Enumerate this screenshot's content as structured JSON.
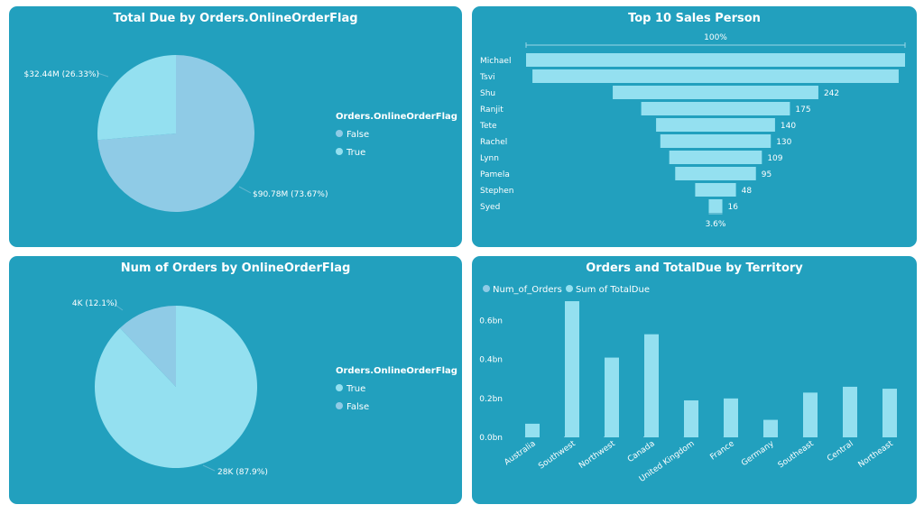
{
  "chart_data": [
    {
      "type": "pie",
      "title": "Total Due by Orders.OnlineOrderFlag",
      "legend_title": "Orders.OnlineOrderFlag",
      "legend_position": "right",
      "slices": [
        {
          "name": "False",
          "value": 90.78,
          "label": "$90.78M (73.67%)",
          "color": "#8fcbe6"
        },
        {
          "name": "True",
          "value": 32.44,
          "label": "$32.44M (26.33%)",
          "color": "#94e0f0"
        }
      ]
    },
    {
      "type": "bar",
      "orientation": "funnel",
      "title": "Top 10 Sales Person",
      "top_label": "100%",
      "bottom_label": "3.6%",
      "categories": [
        "Michael",
        "Tsvi",
        "Shu",
        "Ranjit",
        "Tete",
        "Rachel",
        "Lynn",
        "Pamela",
        "Stephen",
        "Syed"
      ],
      "values": [
        446,
        431,
        242,
        175,
        140,
        130,
        109,
        95,
        48,
        16
      ],
      "value_labels": [
        "",
        "",
        "242",
        "175",
        "140",
        "130",
        "109",
        "95",
        "48",
        "16"
      ],
      "color": "#94e0f0"
    },
    {
      "type": "pie",
      "title": "Num of Orders by OnlineOrderFlag",
      "legend_title": "Orders.OnlineOrderFlag",
      "legend_position": "right",
      "slices": [
        {
          "name": "True",
          "value": 87.9,
          "label": "28K (87.9%)",
          "color": "#94e0f0"
        },
        {
          "name": "False",
          "value": 12.1,
          "label": "4K (12.1%)",
          "color": "#8fcbe6"
        }
      ]
    },
    {
      "type": "bar",
      "title": "Orders and TotalDue by Territory",
      "legend_position": "top-left",
      "legend": [
        "Num_of_Orders",
        "Sum of TotalDue"
      ],
      "legend_colors": [
        "#8fcbe6",
        "#94e0f0"
      ],
      "categories": [
        "Australia",
        "Southwest",
        "Northwest",
        "Canada",
        "United Kingdom",
        "France",
        "Germany",
        "Southeast",
        "Central",
        "Northeast"
      ],
      "series": [
        {
          "name": "Num_of_Orders",
          "values": [
            0.0007,
            0.0042,
            0.0036,
            0.0048,
            0.001,
            0.001,
            0.0007,
            0.0005,
            0.0004,
            0.0004
          ]
        },
        {
          "name": "Sum of TotalDue",
          "values": [
            0.07,
            0.7,
            0.41,
            0.53,
            0.19,
            0.2,
            0.09,
            0.23,
            0.26,
            0.25
          ]
        }
      ],
      "y_ticks": [
        "0.0bn",
        "0.2bn",
        "0.4bn",
        "0.6bn"
      ],
      "ylim": [
        0,
        0.7
      ],
      "grid": false,
      "color": "#94e0f0"
    }
  ]
}
